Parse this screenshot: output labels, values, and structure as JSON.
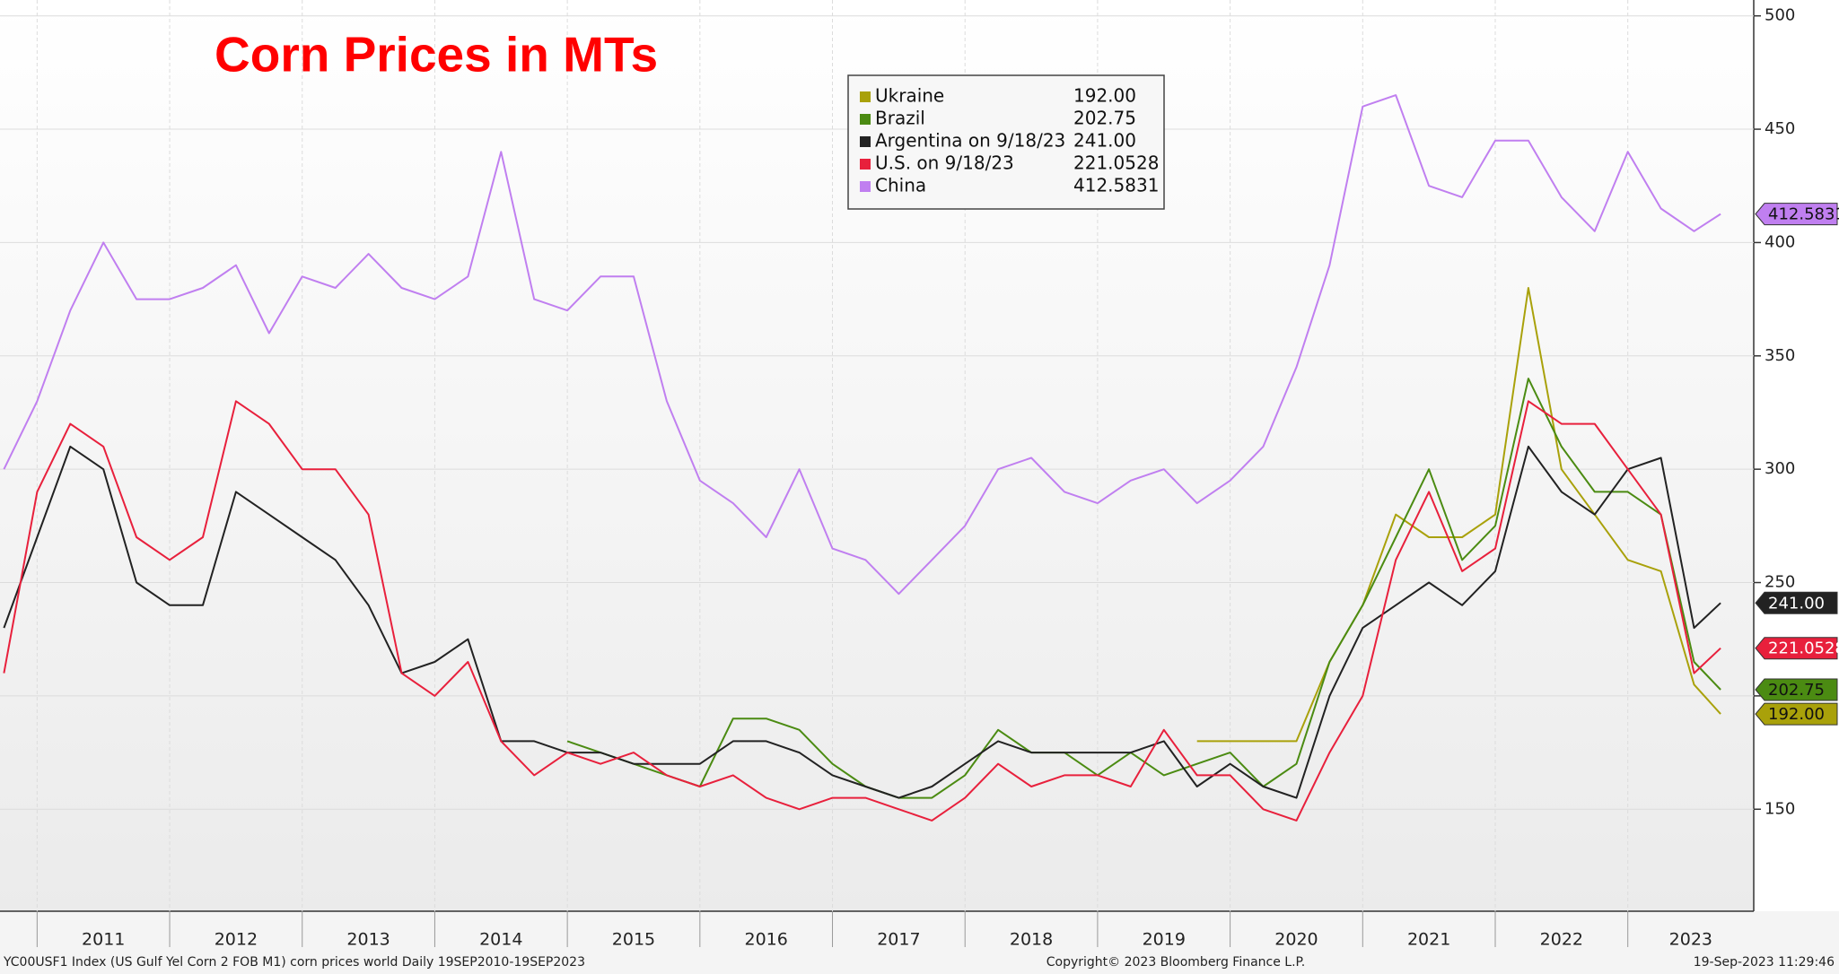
{
  "chart_data": {
    "type": "line",
    "title": "Corn Prices in MTs",
    "footer_left": "YC00USF1 Index (US Gulf Yel Corn 2 FOB M1) corn prices world  Daily 19SEP2010-19SEP2023",
    "footer_center": "Copyright© 2023 Bloomberg Finance L.P.",
    "footer_right": "19-Sep-2023 11:29:46",
    "x": [
      2010.75,
      2011.0,
      2011.25,
      2011.5,
      2011.75,
      2012.0,
      2012.25,
      2012.5,
      2012.75,
      2013.0,
      2013.25,
      2013.5,
      2013.75,
      2014.0,
      2014.25,
      2014.5,
      2014.75,
      2015.0,
      2015.25,
      2015.5,
      2015.75,
      2016.0,
      2016.25,
      2016.5,
      2016.75,
      2017.0,
      2017.25,
      2017.5,
      2017.75,
      2018.0,
      2018.25,
      2018.5,
      2018.75,
      2019.0,
      2019.25,
      2019.5,
      2019.75,
      2020.0,
      2020.25,
      2020.5,
      2020.75,
      2021.0,
      2021.25,
      2021.5,
      2021.75,
      2022.0,
      2022.25,
      2022.5,
      2022.75,
      2023.0,
      2023.25,
      2023.5,
      2023.7
    ],
    "series": [
      {
        "name": "Ukraine",
        "color": "#a9a10a",
        "values": [
          null,
          null,
          null,
          null,
          null,
          null,
          null,
          null,
          null,
          null,
          null,
          null,
          null,
          null,
          null,
          null,
          null,
          null,
          null,
          null,
          null,
          null,
          null,
          null,
          null,
          null,
          null,
          null,
          null,
          null,
          null,
          null,
          null,
          null,
          null,
          null,
          180,
          180,
          180,
          180,
          215,
          240,
          280,
          270,
          270,
          280,
          380,
          300,
          280,
          260,
          255,
          205,
          192
        ],
        "value_labels": [
          null,
          null,
          null,
          null,
          null,
          null,
          null,
          null,
          null,
          null,
          null,
          null,
          null,
          null,
          null,
          null,
          null,
          null,
          null,
          null,
          null,
          null,
          null,
          null,
          null,
          null,
          null,
          null,
          null,
          null,
          null,
          null,
          null,
          null,
          null,
          null,
          null,
          null,
          null,
          null,
          null,
          null,
          null,
          null,
          null,
          null,
          null,
          null,
          null,
          null,
          null,
          null,
          "192.00"
        ]
      },
      {
        "name": "Brazil",
        "color": "#4b8b12",
        "values": [
          null,
          null,
          null,
          null,
          null,
          null,
          null,
          null,
          null,
          null,
          null,
          null,
          null,
          null,
          null,
          null,
          null,
          180,
          175,
          170,
          165,
          160,
          190,
          190,
          185,
          170,
          160,
          155,
          155,
          165,
          185,
          175,
          175,
          165,
          175,
          165,
          170,
          175,
          160,
          170,
          215,
          240,
          270,
          300,
          260,
          275,
          340,
          310,
          290,
          290,
          280,
          215,
          202.75
        ],
        "value_labels": [
          null,
          null,
          null,
          null,
          null,
          null,
          null,
          null,
          null,
          null,
          null,
          null,
          null,
          null,
          null,
          null,
          null,
          null,
          null,
          null,
          null,
          null,
          null,
          null,
          null,
          null,
          null,
          null,
          null,
          null,
          null,
          null,
          null,
          null,
          null,
          null,
          null,
          null,
          null,
          null,
          null,
          null,
          null,
          null,
          null,
          null,
          null,
          null,
          null,
          null,
          null,
          null,
          "202.75"
        ]
      },
      {
        "name": "Argentina on 9/18/23",
        "color": "#222222",
        "values": [
          230,
          270,
          310,
          300,
          250,
          240,
          240,
          290,
          280,
          270,
          260,
          240,
          210,
          215,
          225,
          180,
          180,
          175,
          175,
          170,
          170,
          170,
          180,
          180,
          175,
          165,
          160,
          155,
          160,
          170,
          180,
          175,
          175,
          175,
          175,
          180,
          160,
          170,
          160,
          155,
          200,
          230,
          240,
          250,
          240,
          255,
          310,
          290,
          280,
          300,
          305,
          230,
          241
        ],
        "value_labels": [
          null,
          null,
          null,
          null,
          null,
          null,
          null,
          null,
          null,
          null,
          null,
          null,
          null,
          null,
          null,
          null,
          null,
          null,
          null,
          null,
          null,
          null,
          null,
          null,
          null,
          null,
          null,
          null,
          null,
          null,
          null,
          null,
          null,
          null,
          null,
          null,
          null,
          null,
          null,
          null,
          null,
          null,
          null,
          null,
          null,
          null,
          null,
          null,
          null,
          null,
          null,
          null,
          "241.00"
        ]
      },
      {
        "name": "U.S. on 9/18/23",
        "color": "#e8203c",
        "values": [
          210,
          290,
          320,
          310,
          270,
          260,
          270,
          330,
          320,
          300,
          300,
          280,
          210,
          200,
          215,
          180,
          165,
          175,
          170,
          175,
          165,
          160,
          165,
          155,
          150,
          155,
          155,
          150,
          145,
          155,
          170,
          160,
          165,
          165,
          160,
          185,
          165,
          165,
          150,
          145,
          175,
          200,
          260,
          290,
          255,
          265,
          330,
          320,
          320,
          300,
          280,
          210,
          221.0528
        ],
        "value_labels": [
          null,
          null,
          null,
          null,
          null,
          null,
          null,
          null,
          null,
          null,
          null,
          null,
          null,
          null,
          null,
          null,
          null,
          null,
          null,
          null,
          null,
          null,
          null,
          null,
          null,
          null,
          null,
          null,
          null,
          null,
          null,
          null,
          null,
          null,
          null,
          null,
          null,
          null,
          null,
          null,
          null,
          null,
          null,
          null,
          null,
          null,
          null,
          null,
          null,
          null,
          null,
          null,
          "221.0528"
        ]
      },
      {
        "name": "China",
        "color": "#c07ff0",
        "values": [
          300,
          330,
          370,
          400,
          375,
          375,
          380,
          390,
          360,
          385,
          380,
          395,
          380,
          375,
          385,
          440,
          375,
          370,
          385,
          385,
          330,
          295,
          285,
          270,
          300,
          265,
          260,
          245,
          260,
          275,
          300,
          305,
          290,
          285,
          295,
          300,
          285,
          295,
          310,
          345,
          390,
          460,
          465,
          425,
          420,
          445,
          445,
          420,
          405,
          440,
          415,
          405,
          412.5831
        ],
        "value_labels": [
          null,
          null,
          null,
          null,
          null,
          null,
          null,
          null,
          null,
          null,
          null,
          null,
          null,
          null,
          null,
          null,
          null,
          null,
          null,
          null,
          null,
          null,
          null,
          null,
          null,
          null,
          null,
          null,
          null,
          null,
          null,
          null,
          null,
          null,
          null,
          null,
          null,
          null,
          null,
          null,
          null,
          null,
          null,
          null,
          null,
          null,
          null,
          null,
          null,
          null,
          null,
          null,
          "412.5831"
        ]
      }
    ],
    "xlim": [
      2010.72,
      2023.95
    ],
    "xticks": [
      {
        "value": 2011,
        "label": "2011"
      },
      {
        "value": 2012,
        "label": "2012"
      },
      {
        "value": 2013,
        "label": "2013"
      },
      {
        "value": 2014,
        "label": "2014"
      },
      {
        "value": 2015,
        "label": "2015"
      },
      {
        "value": 2016,
        "label": "2016"
      },
      {
        "value": 2017,
        "label": "2017"
      },
      {
        "value": 2018,
        "label": "2018"
      },
      {
        "value": 2019,
        "label": "2019"
      },
      {
        "value": 2020,
        "label": "2020"
      },
      {
        "value": 2021,
        "label": "2021"
      },
      {
        "value": 2022,
        "label": "2022"
      },
      {
        "value": 2023,
        "label": "2023"
      }
    ],
    "ylim": [
      105,
      507
    ],
    "yticks": [
      150,
      200,
      250,
      300,
      350,
      400,
      450,
      500
    ],
    "grid": true,
    "legend": "top"
  }
}
